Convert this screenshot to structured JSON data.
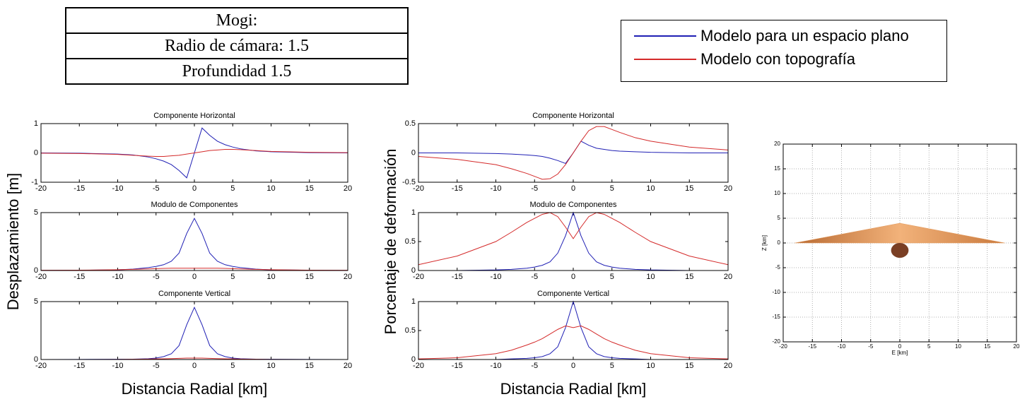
{
  "info_table": {
    "rows": [
      "Mogi:",
      "Radio de cámara: 1.5",
      "Profundidad 1.5"
    ]
  },
  "chart_data": [
    {
      "type": "line",
      "title": "Componente Horizontal",
      "ylabel": "Desplazamiento [m]",
      "x": [
        -20,
        -15,
        -10,
        -8,
        -6,
        -5,
        -4,
        -3,
        -2,
        -1,
        0,
        1,
        2,
        3,
        4,
        5,
        6,
        8,
        10,
        15,
        20
      ],
      "series": [
        {
          "name": "Modelo para un espacio plano",
          "color": "#1f1fb4",
          "values": [
            0,
            -0.01,
            -0.04,
            -0.07,
            -0.14,
            -0.2,
            -0.28,
            -0.4,
            -0.6,
            -0.85,
            0,
            0.85,
            0.6,
            0.4,
            0.28,
            0.2,
            0.14,
            0.07,
            0.04,
            0.01,
            0
          ]
        },
        {
          "name": "Modelo con topografía",
          "color": "#d42a2a",
          "values": [
            -0.01,
            -0.02,
            -0.05,
            -0.08,
            -0.11,
            -0.12,
            -0.12,
            -0.1,
            -0.08,
            -0.04,
            0,
            0.04,
            0.08,
            0.1,
            0.12,
            0.12,
            0.11,
            0.08,
            0.05,
            0.02,
            0.01
          ]
        }
      ],
      "xlim": [
        -20,
        20
      ],
      "ylim": [
        -1,
        1
      ],
      "xticks": [
        -20,
        -15,
        -10,
        -5,
        0,
        5,
        10,
        15,
        20
      ],
      "yticks": [
        -1,
        0,
        1
      ]
    },
    {
      "type": "line",
      "title": "Modulo de Componentes",
      "x": [
        -20,
        -15,
        -10,
        -8,
        -6,
        -5,
        -4,
        -3,
        -2,
        -1,
        0,
        1,
        2,
        3,
        4,
        5,
        6,
        8,
        10,
        15,
        20
      ],
      "series": [
        {
          "color": "#1f1fb4",
          "values": [
            0.01,
            0.02,
            0.06,
            0.12,
            0.25,
            0.35,
            0.5,
            0.8,
            1.5,
            3.2,
            4.5,
            3.2,
            1.5,
            0.8,
            0.5,
            0.35,
            0.25,
            0.12,
            0.06,
            0.02,
            0.01
          ]
        },
        {
          "color": "#d42a2a",
          "values": [
            0.02,
            0.03,
            0.07,
            0.1,
            0.14,
            0.16,
            0.18,
            0.2,
            0.2,
            0.2,
            0.2,
            0.2,
            0.2,
            0.2,
            0.18,
            0.16,
            0.14,
            0.1,
            0.07,
            0.03,
            0.02
          ]
        }
      ],
      "xlim": [
        -20,
        20
      ],
      "ylim": [
        0,
        5
      ],
      "xticks": [
        -20,
        -15,
        -10,
        -5,
        0,
        5,
        10,
        15,
        20
      ],
      "yticks": [
        0,
        5
      ]
    },
    {
      "type": "line",
      "title": "Componente Vertical",
      "xlabel": "Distancia Radial [km]",
      "x": [
        -20,
        -15,
        -10,
        -8,
        -6,
        -5,
        -4,
        -3,
        -2,
        -1,
        0,
        1,
        2,
        3,
        4,
        5,
        6,
        8,
        10,
        15,
        20
      ],
      "series": [
        {
          "color": "#1f1fb4",
          "values": [
            0,
            0.01,
            0.02,
            0.03,
            0.07,
            0.12,
            0.25,
            0.5,
            1.2,
            3.0,
            4.5,
            3.0,
            1.2,
            0.5,
            0.25,
            0.12,
            0.07,
            0.03,
            0.02,
            0.01,
            0
          ]
        },
        {
          "color": "#d42a2a",
          "values": [
            0,
            0,
            0.01,
            0.02,
            0.04,
            0.05,
            0.06,
            0.08,
            0.1,
            0.12,
            0.12,
            0.12,
            0.1,
            0.08,
            0.06,
            0.05,
            0.04,
            0.02,
            0.01,
            0,
            0
          ]
        }
      ],
      "xlim": [
        -20,
        20
      ],
      "ylim": [
        0,
        5
      ],
      "xticks": [
        -20,
        -15,
        -10,
        -5,
        0,
        5,
        10,
        15,
        20
      ],
      "yticks": [
        0,
        5
      ]
    },
    {
      "type": "line",
      "title": "Componente Horizontal",
      "ylabel": "Porcentaje de deformación",
      "x": [
        -20,
        -15,
        -10,
        -8,
        -6,
        -5,
        -4,
        -3,
        -2,
        -1,
        0,
        1,
        2,
        3,
        4,
        5,
        6,
        8,
        10,
        15,
        20
      ],
      "series": [
        {
          "color": "#1f1fb4",
          "values": [
            0,
            0,
            -0.01,
            -0.02,
            -0.035,
            -0.045,
            -0.06,
            -0.09,
            -0.13,
            -0.18,
            0,
            0.2,
            0.13,
            0.08,
            0.06,
            0.04,
            0.03,
            0.02,
            0.01,
            0,
            0
          ]
        },
        {
          "color": "#d42a2a",
          "values": [
            -0.06,
            -0.11,
            -0.2,
            -0.27,
            -0.35,
            -0.4,
            -0.45,
            -0.44,
            -0.36,
            -0.2,
            0,
            0.2,
            0.38,
            0.45,
            0.45,
            0.4,
            0.35,
            0.26,
            0.2,
            0.1,
            0.05
          ]
        }
      ],
      "xlim": [
        -20,
        20
      ],
      "ylim": [
        -0.5,
        0.5
      ],
      "xticks": [
        -20,
        -15,
        -10,
        -5,
        0,
        5,
        10,
        15,
        20
      ],
      "yticks": [
        -0.5,
        0,
        0.5
      ]
    },
    {
      "type": "line",
      "title": "Modulo de Componentes",
      "x": [
        -20,
        -15,
        -10,
        -8,
        -6,
        -5,
        -4,
        -3,
        -2,
        -1,
        0,
        1,
        2,
        3,
        4,
        5,
        6,
        8,
        10,
        15,
        20
      ],
      "series": [
        {
          "color": "#1f1fb4",
          "values": [
            0,
            0,
            0.01,
            0.02,
            0.04,
            0.06,
            0.09,
            0.15,
            0.3,
            0.6,
            1,
            0.6,
            0.3,
            0.15,
            0.09,
            0.06,
            0.04,
            0.02,
            0.01,
            0,
            0
          ]
        },
        {
          "color": "#d42a2a",
          "values": [
            0.1,
            0.25,
            0.5,
            0.66,
            0.83,
            0.9,
            0.97,
            1,
            0.93,
            0.75,
            0.55,
            0.75,
            0.93,
            1,
            0.97,
            0.9,
            0.83,
            0.66,
            0.5,
            0.25,
            0.1
          ]
        }
      ],
      "xlim": [
        -20,
        20
      ],
      "ylim": [
        0,
        1
      ],
      "xticks": [
        -20,
        -15,
        -10,
        -5,
        0,
        5,
        10,
        15,
        20
      ],
      "yticks": [
        0,
        0.5,
        1
      ]
    },
    {
      "type": "line",
      "title": "Componente Vertical",
      "xlabel": "Distancia Radial [km]",
      "x": [
        -20,
        -15,
        -10,
        -8,
        -6,
        -5,
        -4,
        -3,
        -2,
        -1,
        0,
        1,
        2,
        3,
        4,
        5,
        6,
        8,
        10,
        15,
        20
      ],
      "series": [
        {
          "color": "#1f1fb4",
          "values": [
            0,
            0,
            0,
            0.01,
            0.02,
            0.03,
            0.05,
            0.1,
            0.22,
            0.55,
            1,
            0.55,
            0.22,
            0.1,
            0.05,
            0.03,
            0.02,
            0.01,
            0,
            0,
            0
          ]
        },
        {
          "color": "#d42a2a",
          "values": [
            0.01,
            0.03,
            0.1,
            0.16,
            0.25,
            0.3,
            0.36,
            0.44,
            0.52,
            0.58,
            0.55,
            0.58,
            0.52,
            0.44,
            0.36,
            0.3,
            0.25,
            0.16,
            0.1,
            0.03,
            0.01
          ]
        }
      ],
      "xlim": [
        -20,
        20
      ],
      "ylim": [
        0,
        1
      ],
      "xticks": [
        -20,
        -15,
        -10,
        -5,
        0,
        5,
        10,
        15,
        20
      ],
      "yticks": [
        0,
        0.5,
        1
      ]
    },
    {
      "type": "section",
      "xlabel": "E [km]",
      "ylabel": "Z [km]",
      "grid": true,
      "topography": {
        "color": "#e39a5c",
        "x": [
          -18,
          0,
          18
        ],
        "z": [
          0,
          4,
          0
        ]
      },
      "source": {
        "color": "#7a3f24",
        "x": 0,
        "z": -1.5,
        "radius": 1.5
      },
      "xlim": [
        -20,
        20
      ],
      "ylim": [
        -20,
        20
      ],
      "xticks": [
        -20,
        -15,
        -10,
        -5,
        0,
        5,
        10,
        15,
        20
      ],
      "yticks": [
        -20,
        -15,
        -10,
        -5,
        0,
        5,
        10,
        15,
        20
      ]
    }
  ]
}
